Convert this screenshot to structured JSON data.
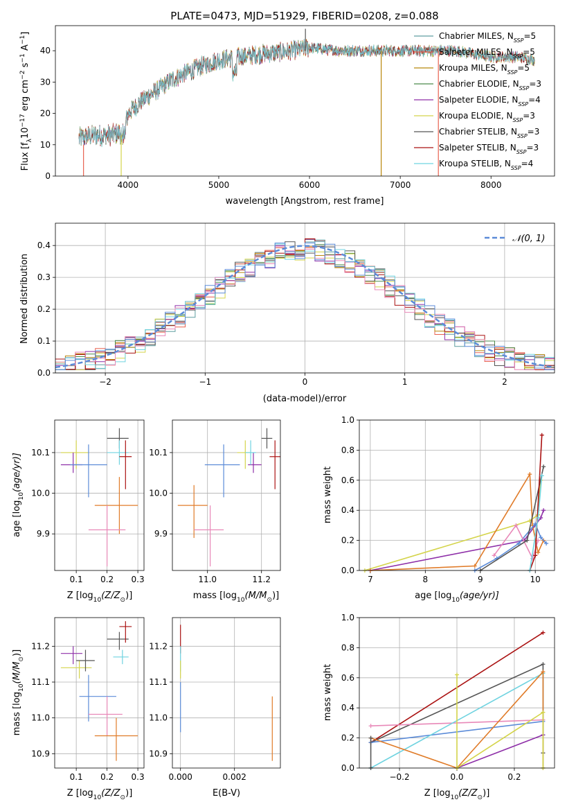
{
  "colors": {
    "miles_chabrier": "#5f9ea0",
    "miles_salpeter": "#e8614f",
    "miles_kroupa": "#b8860b",
    "elodie_chabrier": "#4a8a4a",
    "elodie_salpeter": "#8e2fa8",
    "elodie_kroupa": "#d4d44a",
    "stelib_chabrier": "#555555",
    "stelib_salpeter": "#aa1111",
    "stelib_kroupa": "#6fd3e0",
    "gauss": "#5b8bd8"
  },
  "chart_data": [
    {
      "id": "spectrum",
      "type": "line",
      "title": "PLATE=0473, MJD=51929, FIBERID=0208, z=0.088",
      "xlabel": "wavelength [Angstrom, rest frame]",
      "ylabel": "Flux [f",
      "ylabel_parts": [
        "Flux [f",
        "λ",
        "10",
        "−17",
        " erg cm",
        "−2",
        " s",
        "−1",
        " A",
        "−1",
        "]"
      ],
      "xlim": [
        3200,
        8700
      ],
      "ylim": [
        0,
        48
      ],
      "xticks": [
        "4000",
        "5000",
        "6000",
        "7000",
        "8000"
      ],
      "yticks": [
        "0",
        "10",
        "20",
        "30",
        "40"
      ],
      "x_range": [
        3460,
        8480
      ],
      "continuum_x": [
        3460,
        3600,
        3800,
        3950,
        4000,
        4150,
        4300,
        4500,
        4800,
        5000,
        5200,
        5500,
        5800,
        6000,
        6300,
        6600,
        7000,
        7300,
        7600,
        8000,
        8300,
        8480
      ],
      "continuum_y": [
        12,
        13,
        13,
        14,
        20,
        24,
        27,
        31,
        35,
        37,
        38,
        39,
        40,
        41,
        40,
        40,
        40,
        40,
        40,
        38,
        38,
        37
      ],
      "legend": [
        {
          "label": "Chabrier MILES, N",
          "sub": "SSP",
          "suffix": "=5"
        },
        {
          "label": "Salpeter MILES, N",
          "sub": "SSP",
          "suffix": "=5"
        },
        {
          "label": "Kroupa MILES, N",
          "sub": "SSP",
          "suffix": "=5"
        },
        {
          "label": "Chabrier ELODIE, N",
          "sub": "SSP",
          "suffix": "=3"
        },
        {
          "label": "Salpeter ELODIE, N",
          "sub": "SSP",
          "suffix": "=4"
        },
        {
          "label": "Kroupa ELODIE, N",
          "sub": "SSP",
          "suffix": "=3"
        },
        {
          "label": "Chabrier STELIB, N",
          "sub": "SSP",
          "suffix": "=3"
        },
        {
          "label": "Salpeter STELIB, N",
          "sub": "SSP",
          "suffix": "=3"
        },
        {
          "label": "Kroupa STELIB, N",
          "sub": "SSP",
          "suffix": "=4"
        }
      ],
      "legend_position": "top-right",
      "spikes": [
        {
          "x": 3510,
          "y0": 0,
          "y1": 10,
          "color": "miles_salpeter"
        },
        {
          "x": 3925,
          "y0": 0,
          "y1": 13,
          "color": "elodie_kroupa"
        },
        {
          "x": 5955,
          "y0": 40,
          "y1": 47,
          "color": "stelib_chabrier"
        },
        {
          "x": 6790,
          "y0": 0,
          "y1": 40,
          "color": "miles_kroupa"
        },
        {
          "x": 7420,
          "y0": 0,
          "y1": 40,
          "color": "miles_salpeter"
        }
      ]
    },
    {
      "id": "residuals",
      "type": "histogram",
      "xlabel": "(data-model)/error",
      "ylabel": "Normed distribution",
      "xlim": [
        -2.5,
        2.5
      ],
      "ylim": [
        0,
        0.47
      ],
      "xticks": [
        "−2",
        "−1",
        "0",
        "1",
        "2"
      ],
      "yticks": [
        "0.0",
        "0.1",
        "0.2",
        "0.3",
        "0.4"
      ],
      "legend": "𝒩(0, 1)",
      "legend_position": "top-right",
      "bin_width": 0.1
    },
    {
      "id": "age_vs_Z",
      "type": "scatter",
      "xlabel": "Z [log",
      "xlabel_parts": [
        "Z [log",
        "10",
        "(Z/Z",
        "⊙",
        ")]"
      ],
      "ylabel_parts": [
        "age  [log",
        "10",
        "(age/yr)]"
      ],
      "xlim": [
        0.03,
        0.32
      ],
      "ylim": [
        9.81,
        10.18
      ],
      "xticks": [
        "0.1",
        "0.2",
        "0.3"
      ],
      "yticks": [
        "9.9",
        "10.0",
        "10.1"
      ],
      "points": [
        {
          "x": 0.1,
          "y": 10.1,
          "ex": [
            0.05,
            0.14
          ],
          "ey": [
            10.06,
            10.13
          ],
          "color": "elodie_kroupa"
        },
        {
          "x": 0.09,
          "y": 10.07,
          "ex": [
            0.05,
            0.12
          ],
          "ey": [
            10.05,
            10.1
          ],
          "color": "elodie_salpeter"
        },
        {
          "x": 0.14,
          "y": 10.07,
          "ex": [
            0.08,
            0.2
          ],
          "ey": [
            9.99,
            10.12
          ],
          "color": "gauss"
        },
        {
          "x": 0.24,
          "y": 10.135,
          "ex": [
            0.2,
            0.27
          ],
          "ey": [
            10.11,
            10.16
          ],
          "color": "stelib_chabrier"
        },
        {
          "x": 0.24,
          "y": 10.1,
          "ex": [
            0.2,
            0.27
          ],
          "ey": [
            10.07,
            10.13
          ],
          "color": "stelib_kroupa"
        },
        {
          "x": 0.26,
          "y": 10.09,
          "ex": [
            0.24,
            0.28
          ],
          "ey": [
            10.01,
            10.13
          ],
          "color": "stelib_salpeter"
        },
        {
          "x": 0.24,
          "y": 9.97,
          "ex": [
            0.16,
            0.3
          ],
          "ey": [
            9.9,
            10.04
          ],
          "color": "orange"
        },
        {
          "x": 0.2,
          "y": 9.91,
          "ex": [
            0.14,
            0.26
          ],
          "ey": [
            9.82,
            9.97
          ],
          "color": "pink"
        }
      ]
    },
    {
      "id": "age_vs_mass",
      "type": "scatter",
      "xlabel_parts": [
        "mass [log",
        "10",
        "(M/M",
        "⊙",
        ")]"
      ],
      "xlim": [
        10.87,
        11.27
      ],
      "ylim": [
        9.81,
        10.18
      ],
      "xticks": [
        "11.0",
        "11.2"
      ],
      "yticks": [
        "9.9",
        "10.0",
        "10.1"
      ],
      "points": [
        {
          "x": 11.14,
          "y": 10.1,
          "ex": [
            11.11,
            11.16
          ],
          "ey": [
            10.06,
            10.13
          ],
          "color": "elodie_kroupa"
        },
        {
          "x": 11.17,
          "y": 10.07,
          "ex": [
            11.15,
            11.2
          ],
          "ey": [
            10.05,
            10.1
          ],
          "color": "elodie_salpeter"
        },
        {
          "x": 11.06,
          "y": 10.07,
          "ex": [
            10.99,
            11.12
          ],
          "ey": [
            9.99,
            10.12
          ],
          "color": "gauss"
        },
        {
          "x": 11.22,
          "y": 10.135,
          "ex": [
            11.2,
            11.24
          ],
          "ey": [
            10.11,
            10.16
          ],
          "color": "stelib_chabrier"
        },
        {
          "x": 11.16,
          "y": 10.1,
          "ex": [
            11.14,
            11.18
          ],
          "ey": [
            10.07,
            10.13
          ],
          "color": "stelib_kroupa"
        },
        {
          "x": 11.25,
          "y": 10.09,
          "ex": [
            11.23,
            11.27
          ],
          "ey": [
            10.01,
            10.13
          ],
          "color": "stelib_salpeter"
        },
        {
          "x": 10.95,
          "y": 9.97,
          "ex": [
            10.89,
            11.0
          ],
          "ey": [
            9.89,
            10.02
          ],
          "color": "orange"
        },
        {
          "x": 11.01,
          "y": 9.91,
          "ex": [
            10.95,
            11.06
          ],
          "ey": [
            9.82,
            9.97
          ],
          "color": "pink"
        }
      ]
    },
    {
      "id": "weight_vs_age",
      "type": "line",
      "xlabel_parts": [
        "age  [log",
        "10",
        "(age/yr)]"
      ],
      "ylabel": "mass weight",
      "xlim": [
        6.8,
        10.35
      ],
      "ylim": [
        0,
        1
      ],
      "xticks": [
        "7",
        "8",
        "9",
        "10"
      ],
      "yticks": [
        "0.0",
        "0.2",
        "0.4",
        "0.6",
        "0.8",
        "1.0"
      ],
      "series": [
        {
          "color": "elodie_kroupa",
          "x": [
            6.9,
            9.9,
            10.05,
            10.1
          ],
          "y": [
            0.0,
            0.33,
            0.37,
            0.6
          ]
        },
        {
          "color": "elodie_salpeter",
          "x": [
            7.0,
            9.8,
            10.1,
            10.15
          ],
          "y": [
            0.0,
            0.2,
            0.35,
            0.4
          ]
        },
        {
          "color": "orange",
          "x": [
            7.0,
            8.9,
            9.9,
            9.95,
            10.05,
            10.15
          ],
          "y": [
            0.0,
            0.03,
            0.64,
            0.3,
            0.12,
            0.2
          ]
        },
        {
          "color": "gauss",
          "x": [
            8.9,
            9.3,
            9.7,
            10.0,
            10.1,
            10.2
          ],
          "y": [
            0.0,
            0.08,
            0.18,
            0.31,
            0.22,
            0.18
          ]
        },
        {
          "color": "pink",
          "x": [
            9.25,
            9.65,
            9.95,
            10.05
          ],
          "y": [
            0.1,
            0.3,
            0.08,
            0.2
          ]
        },
        {
          "color": "stelib_chabrier",
          "x": [
            9.0,
            9.85,
            10.15
          ],
          "y": [
            0.0,
            0.2,
            0.69
          ]
        },
        {
          "color": "stelib_salpeter",
          "x": [
            9.9,
            10.0,
            10.12
          ],
          "y": [
            0.0,
            0.1,
            0.9
          ]
        },
        {
          "color": "stelib_kroupa",
          "x": [
            9.9,
            10.05,
            10.12
          ],
          "y": [
            0.0,
            0.35,
            0.63
          ]
        }
      ]
    },
    {
      "id": "mass_vs_Z",
      "type": "scatter",
      "xlabel_parts": [
        "Z [log",
        "10",
        "(Z/Z",
        "⊙",
        ")]"
      ],
      "ylabel_parts": [
        "mass [log",
        "10",
        "(M/M",
        "⊙",
        ")]"
      ],
      "xlim": [
        0.03,
        0.32
      ],
      "ylim": [
        10.86,
        11.28
      ],
      "xticks": [
        "0.1",
        "0.2",
        "0.3"
      ],
      "yticks": [
        "10.9",
        "11.0",
        "11.1",
        "11.2"
      ],
      "points": [
        {
          "x": 0.11,
          "y": 11.14,
          "ex": [
            0.05,
            0.15
          ],
          "ey": [
            11.11,
            11.16
          ],
          "color": "elodie_kroupa"
        },
        {
          "x": 0.09,
          "y": 11.18,
          "ex": [
            0.05,
            0.12
          ],
          "ey": [
            11.15,
            11.2
          ],
          "color": "elodie_salpeter"
        },
        {
          "x": 0.13,
          "y": 11.16,
          "ex": [
            0.1,
            0.16
          ],
          "ey": [
            11.13,
            11.19
          ],
          "color": "stelib_chabrier"
        },
        {
          "x": 0.14,
          "y": 11.06,
          "ex": [
            0.11,
            0.23
          ],
          "ey": [
            10.99,
            11.12
          ],
          "color": "gauss"
        },
        {
          "x": 0.24,
          "y": 11.22,
          "ex": [
            0.2,
            0.27
          ],
          "ey": [
            11.19,
            11.24
          ],
          "color": "stelib_chabrier"
        },
        {
          "x": 0.26,
          "y": 11.255,
          "ex": [
            0.24,
            0.28
          ],
          "ey": [
            11.21,
            11.27
          ],
          "color": "stelib_salpeter"
        },
        {
          "x": 0.25,
          "y": 11.17,
          "ex": [
            0.22,
            0.27
          ],
          "ey": [
            11.15,
            11.19
          ],
          "color": "stelib_kroupa"
        },
        {
          "x": 0.2,
          "y": 11.01,
          "ex": [
            0.14,
            0.25
          ],
          "ey": [
            10.95,
            11.06
          ],
          "color": "pink"
        },
        {
          "x": 0.23,
          "y": 10.95,
          "ex": [
            0.16,
            0.3
          ],
          "ey": [
            10.88,
            11.0
          ],
          "color": "orange"
        }
      ]
    },
    {
      "id": "mass_vs_EBV",
      "type": "scatter",
      "xlabel": "E(B-V)",
      "xlim": [
        -0.0003,
        0.0037
      ],
      "ylim": [
        10.86,
        11.28
      ],
      "xticks": [
        "0.000",
        "0.002"
      ],
      "yticks": [
        "10.9",
        "11.0",
        "11.1",
        "11.2"
      ],
      "points": [
        {
          "x": 0.0,
          "y": 11.22,
          "ex": [
            0.0,
            0.0
          ],
          "ey": [
            11.18,
            11.26
          ],
          "color": "stelib_salpeter"
        },
        {
          "x": 0.0,
          "y": 11.16,
          "ex": [
            0.0,
            0.0
          ],
          "ey": [
            11.13,
            11.2
          ],
          "color": "stelib_kroupa"
        },
        {
          "x": 0.0,
          "y": 11.14,
          "ex": [
            0.0,
            0.0
          ],
          "ey": [
            11.11,
            11.16
          ],
          "color": "elodie_kroupa"
        },
        {
          "x": 0.0,
          "y": 11.04,
          "ex": [
            0.0,
            0.0
          ],
          "ey": [
            10.96,
            11.1
          ],
          "color": "gauss"
        },
        {
          "x": 0.0034,
          "y": 10.97,
          "ex": [
            0.0034,
            0.0034
          ],
          "ey": [
            10.88,
            11.06
          ],
          "color": "orange"
        }
      ]
    },
    {
      "id": "weight_vs_Z",
      "type": "line",
      "xlabel_parts": [
        "Z [log",
        "10",
        "(Z/Z",
        "⊙",
        ")]"
      ],
      "ylabel": "mass weight",
      "xlim": [
        -0.34,
        0.34
      ],
      "ylim": [
        0,
        1
      ],
      "xticks": [
        "−0.2",
        "0.0",
        "0.2"
      ],
      "yticks": [
        "0.0",
        "0.2",
        "0.4",
        "0.6",
        "0.8",
        "1.0"
      ],
      "series": [
        {
          "color": "stelib_salpeter",
          "x": [
            -0.3,
            0.3
          ],
          "y": [
            0.17,
            0.9
          ]
        },
        {
          "color": "stelib_chabrier",
          "x": [
            -0.3,
            0.3,
            0.3
          ],
          "y": [
            0.17,
            0.69,
            0.1
          ]
        },
        {
          "color": "pink",
          "x": [
            -0.3,
            0.3
          ],
          "y": [
            0.28,
            0.32
          ]
        },
        {
          "color": "gauss",
          "x": [
            -0.3,
            0.3,
            0.3
          ],
          "y": [
            0.17,
            0.31,
            0.22
          ]
        },
        {
          "color": "stelib_kroupa",
          "x": [
            -0.3,
            0.3,
            0.3
          ],
          "y": [
            0.0,
            0.63,
            0.0
          ]
        },
        {
          "color": "orange",
          "x": [
            -0.3,
            0.0,
            0.3,
            0.3
          ],
          "y": [
            0.2,
            0.0,
            0.64,
            0.0
          ]
        },
        {
          "color": "elodie_salpeter",
          "x": [
            0.0,
            0.3
          ],
          "y": [
            0.0,
            0.22
          ]
        },
        {
          "color": "elodie_kroupa",
          "x": [
            0.0,
            0.0,
            0.0,
            0.3,
            0.3
          ],
          "y": [
            0.62,
            0.0,
            0.0,
            0.37,
            0.0
          ]
        },
        {
          "color": "stelib_chabrier",
          "x": [
            -0.3,
            -0.3
          ],
          "y": [
            0.0,
            0.2
          ]
        }
      ]
    }
  ]
}
